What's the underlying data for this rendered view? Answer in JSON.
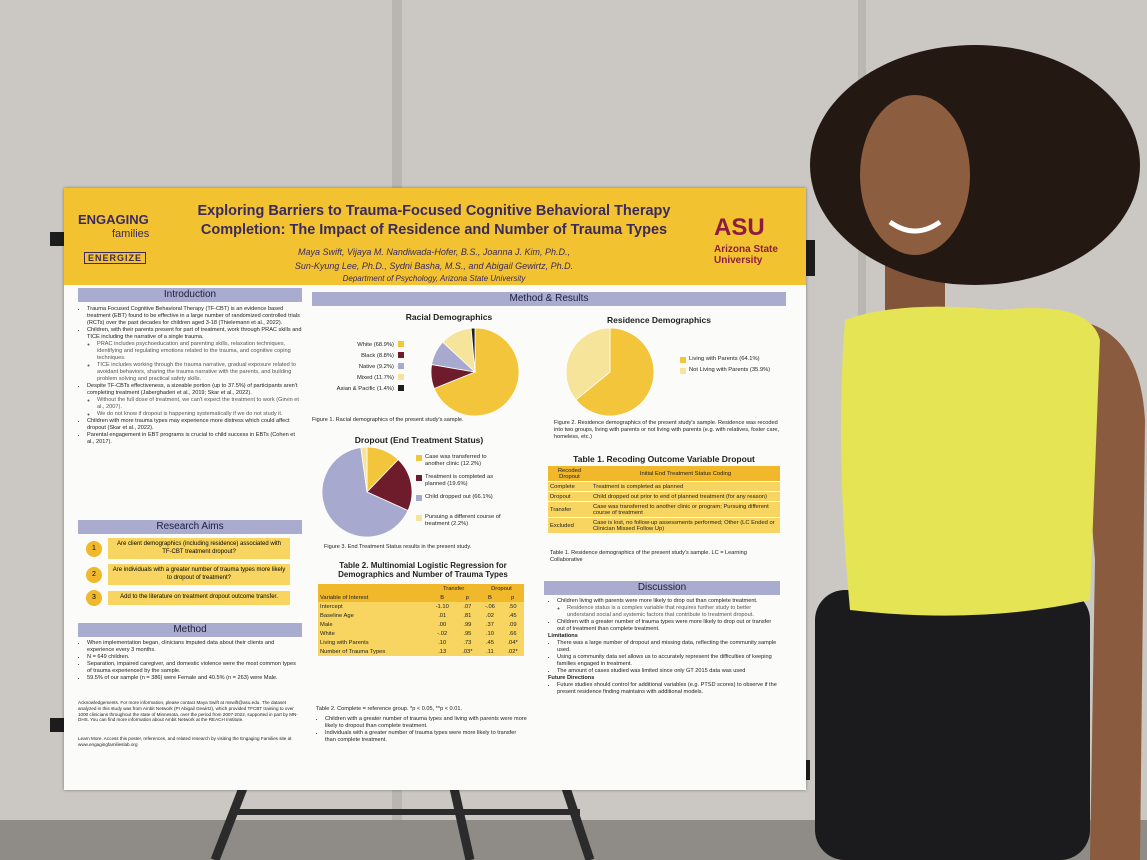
{
  "poster": {
    "header": {
      "logo_left": "ENGAGING",
      "logo_left_sub": "families",
      "logo_left_tag": "ENERGIZE",
      "logo_right": "ASU",
      "logo_right_sub": "Arizona State University",
      "title": "Exploring Barriers to Trauma-Focused Cognitive Behavioral Therapy Completion: The Impact of Residence and Number of Trauma Types",
      "authors_1": "Maya Swift, Vijaya M. Nandiwada-Hofer, B.S., Joanna J. Kim, Ph.D.,",
      "authors_2": "Sun-Kyung Lee, Ph.D., Sydni Basha, M.S., and Abigail Gewirtz, Ph.D.",
      "department": "Department of Psychology, Arizona State University"
    },
    "introduction": {
      "heading": "Introduction",
      "items": [
        {
          "text": "Trauma Focused Cognitive Behavioral Therapy (TF-CBT) is an evidence based treatment (EBT) found to be effective in a large number of randomized controlled trials (RCTs) over the past decades for children aged 3-18 (Thielemann et al., 2022)."
        },
        {
          "text": "Children, with their parents present for part of treatment, work through PRAC skills and TICE including the narrative of a single trauma.",
          "sub": [
            "PRAC includes psychoeducation and parenting skills, relaxation techniques, identifying and regulating emotions related to the trauma, and cognitive coping techniques.",
            "TICE includes working through the trauma narrative, gradual exposure related to avoidant behaviors, sharing the trauma narrative with the parents, and building problem solving and practical safety skills."
          ]
        },
        {
          "text": "Despite TF-CBTs effectiveness, a sizeable portion (up to 37.5%) of participants aren't completing treatment (Jaberghaderi et al., 2019; Skar et al., 2022).",
          "sub": [
            "Without the full dose of treatment, we can't expect the treatment to work (Girvin et al., 2007).",
            "We do not know if dropout is happening systematically if we do not study it."
          ]
        },
        {
          "text": "Children with more trauma types may experience more distress which could affect dropout (Skar et al., 2022)."
        },
        {
          "text": "Parental engagement in EBT programs is crucial to child success in EBTs (Cohen et al., 2017)."
        }
      ]
    },
    "aims": {
      "heading": "Research Aims",
      "items": [
        {
          "number": 1,
          "text": "Are client demographics (including residence) associated with TF-CBT treatment dropout?"
        },
        {
          "number": 2,
          "text": "Are individuals with a greater number of trauma types more likely to dropout of treatment?"
        },
        {
          "number": 3,
          "text": "Add to the literature on treatment dropout outcome transfer."
        }
      ]
    },
    "method": {
      "heading": "Method",
      "items": [
        {
          "text": "When implementation began, clinicians imputed data about their clients and experience every 3 months."
        },
        {
          "text": "N = 649 children."
        },
        {
          "text": "Separation, impaired caregiver, and domestic violence were the most common types of trauma experienced by the sample."
        },
        {
          "text": "59.5% of our sample (n = 386) were Female and 40.5% (n = 263) were Male."
        }
      ]
    },
    "acknowledgements": "Acknowledgements. For more information, please contact Maya Swift at mswift@asu.edu. The dataset analyzed in this study was from Ambit Network (PI Abigail Gewirtz), which provided TFCBT training to over 1000 clinicians throughout the state of Minnesota, over the period from 2007-2022, supported in part by MN-DHS. You can find more information about Ambit Network at the REACH Institute.",
    "learn_more": "Learn More. Access this poster, references, and related research by visiting the Engaging Families site at www.engagingfamilieslab.org",
    "results_heading": "Method & Results",
    "racial": {
      "type": "pie",
      "title": "Racial Demographics",
      "categories": [
        "White (68.9%)",
        "Black (8.8%)",
        "Native (9.2%)",
        "Mixed (11.7%)",
        "Asian & Pacific (1.4%)"
      ],
      "values": [
        68.9,
        8.8,
        9.2,
        11.7,
        1.4
      ],
      "colors": [
        "#f3c53a",
        "#6e1c2c",
        "#a8a9cf",
        "#f6e49a",
        "#1e1e1e"
      ],
      "caption": "Figure 1. Racial demographics of the present study's sample."
    },
    "residence": {
      "type": "pie",
      "title": "Residence Demographics",
      "categories": [
        "Living with Parents (64.1%)",
        "Not Living with Parents (35.9%)"
      ],
      "values": [
        64.1,
        35.9
      ],
      "colors": [
        "#f3c53a",
        "#f6e49a"
      ],
      "caption": "Figure 2. Residence demographics of the present study's sample. Residence was recoded into two groups, living with parents or not living with parents (e.g. with relatives, foster care, homeless, etc.)"
    },
    "dropout": {
      "type": "pie",
      "title": "Dropout (End Treatment Status)",
      "categories": [
        "Case was transferred to another clinic (12.2%)",
        "Treatment is completed as planned (19.6%)",
        "Child dropped out (66.1%)",
        "Pursuing a different course of treatment (2.2%)"
      ],
      "values": [
        12.2,
        19.6,
        66.1,
        2.2
      ],
      "colors": [
        "#f3c53a",
        "#6e1c2c",
        "#a8a9cf",
        "#f6e49a"
      ],
      "caption": "Figure 3. End Treatment Status results in the present study."
    },
    "table2": {
      "title": "Table 2. Multinomial Logistic Regression for Demographics and Number of Trauma Types",
      "groups": [
        "Transfer",
        "Dropout"
      ],
      "columns": [
        "Variable of Interest",
        "B",
        "p",
        "B",
        "p"
      ],
      "rows": [
        [
          "Intercept",
          "-1.10",
          ".07",
          "-.06",
          ".50"
        ],
        [
          "Baseline Age",
          ".01",
          ".81",
          ".02",
          ".45"
        ],
        [
          "Male",
          ".00",
          ".99",
          ".37",
          ".09"
        ],
        [
          "White",
          "-.02",
          ".95",
          ".10",
          ".66"
        ],
        [
          "Living with Parents",
          ".10",
          ".73",
          ".45",
          ".04*"
        ],
        [
          "Number of Trauma Types",
          ".13",
          ".03*",
          ".11",
          ".02*"
        ]
      ],
      "note": "Table 2. Complete = reference group. *p < 0.05, **p < 0.01.",
      "findings": [
        {
          "text": "Children with a greater number of trauma types and living with parents were more likely to dropout than complete treatment."
        },
        {
          "text": "Individuals with a greater number of trauma types were more likely to transfer than complete treatment."
        }
      ]
    },
    "table1": {
      "title": "Table 1. Recoding Outcome Variable Dropout",
      "columns": [
        "Recoded Dropout",
        "Initial End Treatment Status Coding"
      ],
      "rows": [
        [
          "Complete",
          "Treatment is completed as planned"
        ],
        [
          "Dropout",
          "Child dropped out prior to end of planned treatment (for any reason)"
        ],
        [
          "Transfer",
          "Case was transferred to another clinic or program; Pursuing different course of treatment"
        ],
        [
          "Excluded",
          "Case is lost, no follow-up assessments performed; Other (LC Ended or Clinician Missed Follow Up)"
        ]
      ],
      "caption": "Table 1. Residence demographics of the present study's sample. LC = Learning Collaborative"
    },
    "discussion": {
      "heading": "Discussion",
      "items": [
        {
          "text": "Children living with parents were more likely to drop out than complete treatment.",
          "sub": [
            "Residence status is a complex variable that requires further study to better understand social and systemic factors that contribute to treatment dropout."
          ]
        },
        {
          "text": "Children with a greater number of trauma types were more likely to drop out or transfer out of treatment than complete treatment."
        }
      ],
      "limitations_heading": "Limitations",
      "limitations": [
        {
          "text": "There was a large number of dropout and missing data, reflecting the community sample used."
        },
        {
          "text": "Using a community data set allows us to accurately represent the difficulties of keeping families engaged in treatment."
        },
        {
          "text": "The amount of cases studied was limited since only GT 2015 data was used"
        }
      ],
      "future_heading": "Future Directions",
      "future": [
        {
          "text": "Future studies should control for additional variables (e.g. PTSD scores) to observe if the present residence finding maintains with additional models."
        }
      ]
    }
  }
}
